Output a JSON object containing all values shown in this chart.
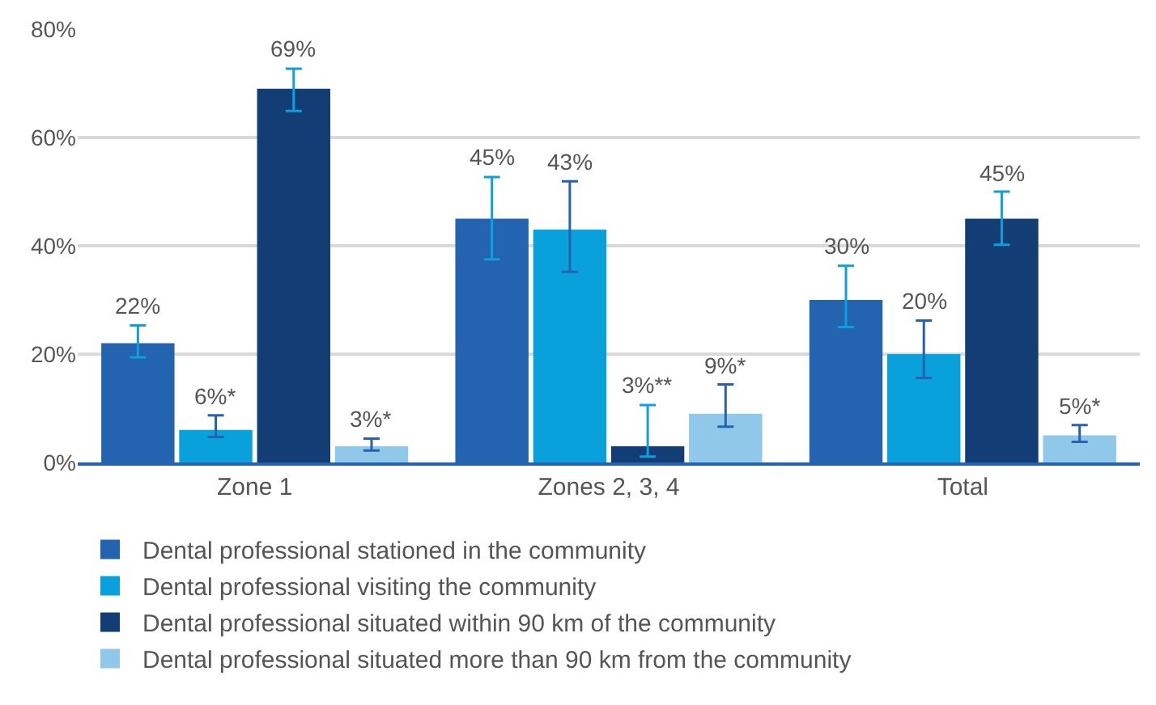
{
  "chart_data": {
    "type": "bar",
    "categories": [
      "Zone 1",
      "Zones 2, 3, 4",
      "Total"
    ],
    "series": [
      {
        "name": "Dental professional stationed in the community",
        "color": "#2463b0",
        "values": [
          22,
          45,
          30
        ],
        "value_labels": [
          "22%",
          "45%",
          "30%"
        ],
        "errors": [
          [
            19.4,
            25.3
          ],
          [
            37.5,
            52.7
          ],
          [
            25.0,
            36.3
          ]
        ]
      },
      {
        "name": "Dental professional visiting the community",
        "color": "#09a1dc",
        "values": [
          6,
          43,
          20
        ],
        "value_labels": [
          "6%*",
          "43%",
          "20%"
        ],
        "errors": [
          [
            4.7,
            8.7
          ],
          [
            35.2,
            51.9
          ],
          [
            15.6,
            26.2
          ]
        ]
      },
      {
        "name": "Dental professional situated within 90 km of the community",
        "color": "#123e75",
        "values": [
          69,
          3,
          45
        ],
        "value_labels": [
          "69%",
          "3%**",
          "45%"
        ],
        "errors": [
          [
            64.9,
            72.7
          ],
          [
            1.1,
            10.6
          ],
          [
            40.2,
            50.0
          ]
        ]
      },
      {
        "name": "Dental professional situated more than 90 km from the community",
        "color": "#90c8ea",
        "values": [
          3,
          9,
          5
        ],
        "value_labels": [
          "3%*",
          "9%*",
          "5%*"
        ],
        "errors": [
          [
            2.2,
            4.4
          ],
          [
            6.6,
            14.4
          ],
          [
            3.8,
            6.9
          ]
        ]
      }
    ],
    "ylim": [
      0,
      80
    ],
    "yticks": [
      {
        "value": 0,
        "label": "0%"
      },
      {
        "value": 20,
        "label": "20%"
      },
      {
        "value": 40,
        "label": "40%"
      },
      {
        "value": 60,
        "label": "60%"
      },
      {
        "value": 80,
        "label": "80%"
      }
    ],
    "grid": "y",
    "legend": "bottom left"
  }
}
